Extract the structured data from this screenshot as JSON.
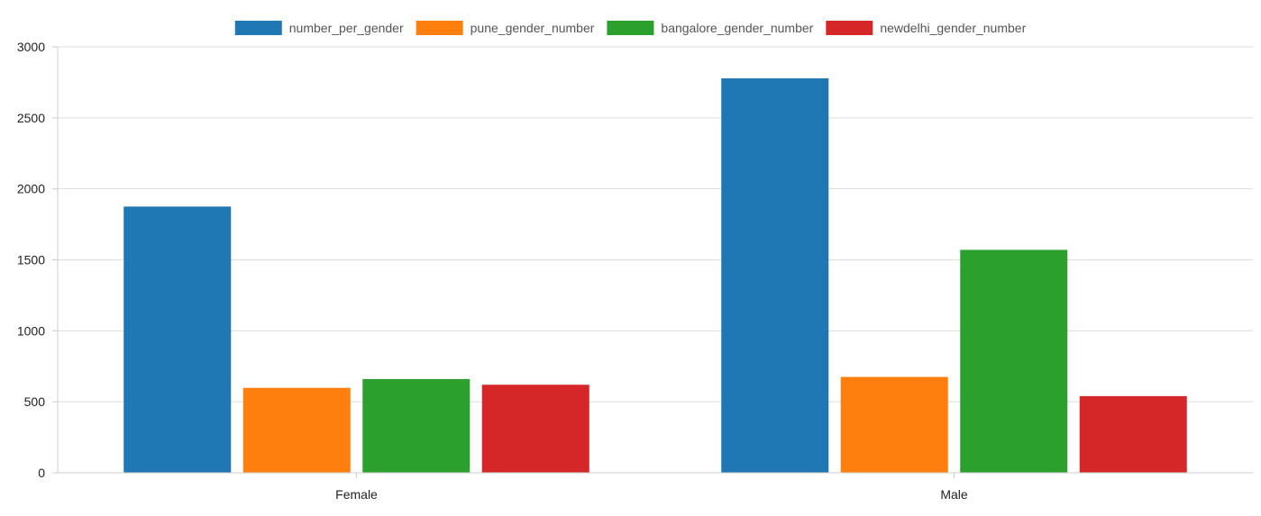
{
  "chart_data": {
    "type": "bar",
    "title": "",
    "xlabel": "",
    "ylabel": "",
    "categories": [
      "Female",
      "Male"
    ],
    "series": [
      {
        "name": "number_per_gender",
        "color": "#1f77b4",
        "values": [
          1875,
          2778
        ]
      },
      {
        "name": "pune_gender_number",
        "color": "#ff7f0e",
        "values": [
          598,
          675
        ]
      },
      {
        "name": "bangalore_gender_number",
        "color": "#2ca02c",
        "values": [
          660,
          1570
        ]
      },
      {
        "name": "newdelhi_gender_number",
        "color": "#d62728",
        "values": [
          620,
          540
        ]
      }
    ],
    "ylim": [
      0,
      3000
    ],
    "yticks": [
      0,
      500,
      1000,
      1500,
      2000,
      2500,
      3000
    ],
    "grid": true,
    "legend_position": "top-center"
  }
}
